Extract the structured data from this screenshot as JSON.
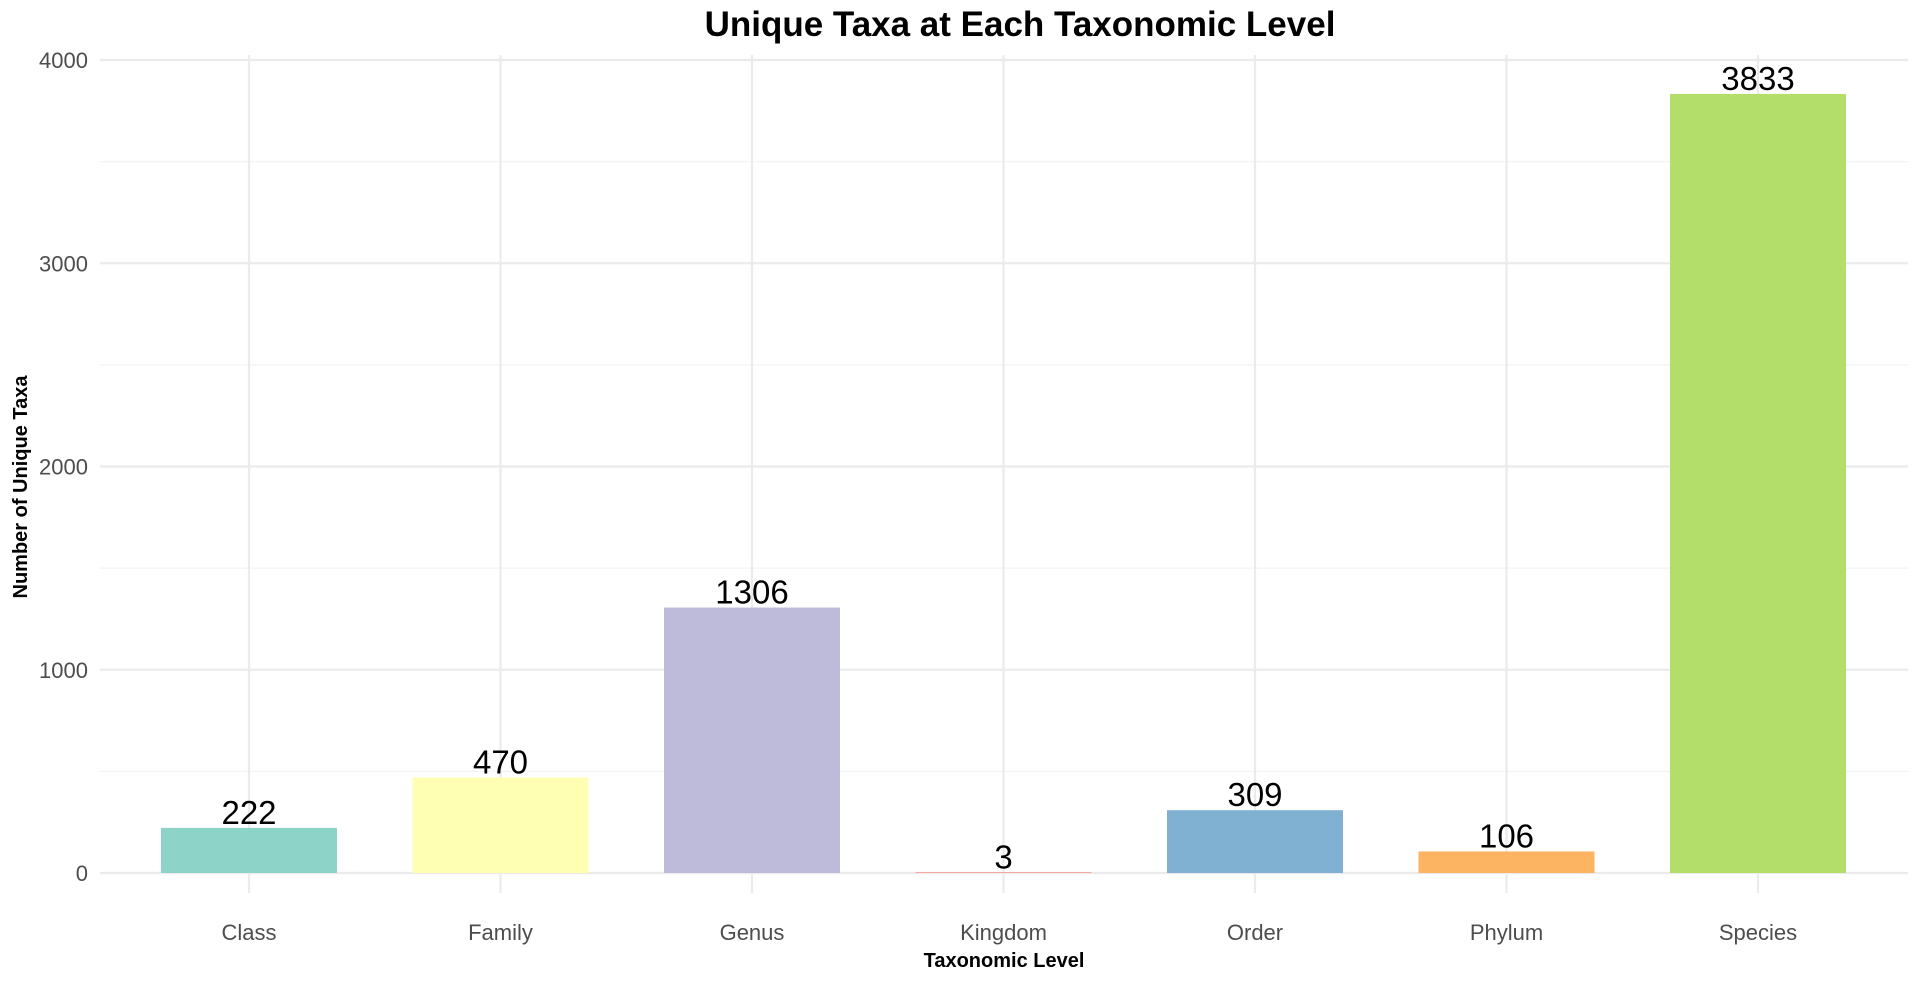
{
  "chart_data": {
    "type": "bar",
    "title": "Unique Taxa at Each Taxonomic Level",
    "xlabel": "Taxonomic Level",
    "ylabel": "Number of Unique Taxa",
    "categories": [
      "Class",
      "Family",
      "Genus",
      "Kingdom",
      "Order",
      "Phylum",
      "Species"
    ],
    "values": [
      222,
      470,
      1306,
      3,
      309,
      106,
      3833
    ],
    "data_labels": [
      "222",
      "470",
      "1306",
      "3",
      "309",
      "106",
      "3833"
    ],
    "colors": [
      "#8DD3C7",
      "#FFFFB3",
      "#BEBADA",
      "#FB8072",
      "#80B1D3",
      "#FDB462",
      "#B3DE69"
    ],
    "ylim": [
      0,
      4000
    ],
    "y_ticks": [
      0,
      1000,
      2000,
      3000,
      4000
    ],
    "y_tick_labels": [
      "0",
      "1000",
      "2000",
      "3000",
      "4000"
    ],
    "grid": true,
    "legend": "none"
  }
}
